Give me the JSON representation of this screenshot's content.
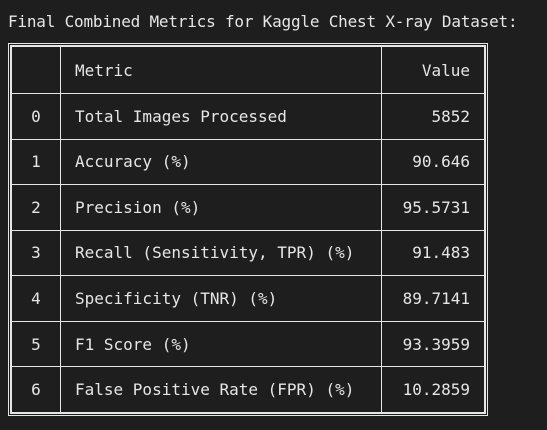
{
  "title": "Final Combined Metrics for Kaggle Chest X-ray Dataset:",
  "table": {
    "headers": [
      "",
      "Metric",
      "Value"
    ],
    "rows": [
      {
        "index": "0",
        "metric": "Total Images Processed",
        "value": "5852"
      },
      {
        "index": "1",
        "metric": "Accuracy (%)",
        "value": "90.646"
      },
      {
        "index": "2",
        "metric": "Precision (%)",
        "value": "95.5731"
      },
      {
        "index": "3",
        "metric": "Recall (Sensitivity, TPR) (%)",
        "value": "91.483"
      },
      {
        "index": "4",
        "metric": "Specificity (TNR) (%)",
        "value": "89.7141"
      },
      {
        "index": "5",
        "metric": "F1 Score (%)",
        "value": "93.3959"
      },
      {
        "index": "6",
        "metric": "False Positive Rate (FPR) (%)",
        "value": "10.2859"
      }
    ]
  }
}
